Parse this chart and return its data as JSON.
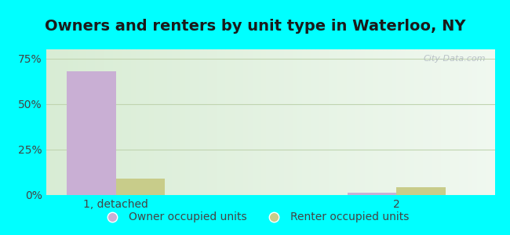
{
  "title": "Owners and renters by unit type in Waterloo, NY",
  "categories": [
    "1, detached",
    "2"
  ],
  "owner_values": [
    68,
    1.5
  ],
  "renter_values": [
    9,
    4.5
  ],
  "owner_color": "#c9afd4",
  "renter_color": "#c8cc8a",
  "yticks": [
    0,
    25,
    50,
    75
  ],
  "ytick_labels": [
    "0%",
    "25%",
    "50%",
    "75%"
  ],
  "ylim": [
    0,
    80
  ],
  "bar_width": 0.35,
  "bg_color": "#d8ecd4",
  "title_fontsize": 14,
  "tick_fontsize": 10,
  "legend_fontsize": 10,
  "watermark": "City-Data.com",
  "grid_color": "#c0d4b0",
  "outer_bg": "#00ffff",
  "text_color": "#444444"
}
